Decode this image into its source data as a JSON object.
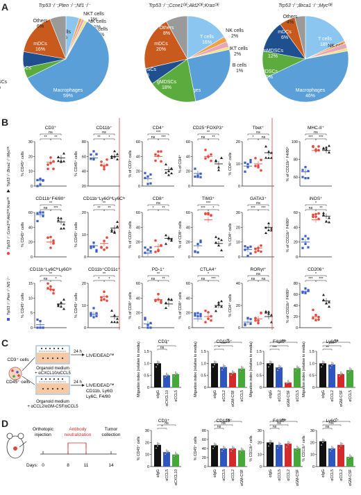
{
  "panels": {
    "A": "A",
    "B": "B",
    "C": "C",
    "D": "D"
  },
  "genotypes": [
    "Trp53⁻/⁻;Pten⁻/⁻;Nf1⁻/⁻",
    "Trp53⁻/⁻;Ccne1ᴼᴱ;Akt2ᴼᴱ;Krasᴼᴱ",
    "Trp53⁻/⁻;Brca1⁻/⁻;Mycᴼᴱ"
  ],
  "colors": {
    "macrophages": "#5a9fd8",
    "gmdscs": "#5cab3e",
    "mmdscs": "#1f4f8f",
    "mdcs": "#c85a1e",
    "others": "#9a9a9a",
    "tcells": "#8ac6ef",
    "nkcells": "#f2a14b",
    "nktcells": "#e8a7b8",
    "bcells": "#f5e37a",
    "grp1": "#3b5fc4",
    "grp2": "#e64a3c",
    "grp3": "#222222",
    "c_igg": "#111111",
    "c_blue": "#2f55c0",
    "c_red": "#d32b2b",
    "c_green": "#47a83a"
  },
  "chart_data": [
    {
      "type": "pie",
      "title": "Trp53⁻/⁻;Pten⁻/⁻;Nf1⁻/⁻",
      "slices": [
        {
          "label": "Macrophages",
          "value": 59,
          "pct": "59%"
        },
        {
          "label": "gMDSCs",
          "value": 4,
          "pct": "4%"
        },
        {
          "label": "mMDSCs",
          "value": 6,
          "pct": "6%"
        },
        {
          "label": "mDCs",
          "value": 16,
          "pct": "16%"
        },
        {
          "label": "Others",
          "value": 6,
          "pct": "6%"
        },
        {
          "label": "T cells",
          "value": 5,
          "pct": "5%"
        },
        {
          "label": "NKT cells",
          "value": 1,
          "pct": "1%"
        },
        {
          "label": "NK cells",
          "value": 1,
          "pct": "1%"
        },
        {
          "label": "B cells",
          "value": 1,
          "pct": "1%"
        }
      ]
    },
    {
      "type": "pie",
      "title": "Trp53⁻/⁻;Ccne1ᴼᴱ;Akt2ᴼᴱ;Krasᴼᴱ",
      "slices": [
        {
          "label": "Macrophages",
          "value": 25,
          "pct": "25%"
        },
        {
          "label": "gMDSCs",
          "value": 18,
          "pct": "18%"
        },
        {
          "label": "mMDSCs",
          "value": 6,
          "pct": "6%"
        },
        {
          "label": "mDCs",
          "value": 20,
          "pct": "20%"
        },
        {
          "label": "Others",
          "value": 8,
          "pct": "8%"
        },
        {
          "label": "T cells",
          "value": 16,
          "pct": "16%"
        },
        {
          "label": "NK cells",
          "value": 2,
          "pct": "2%"
        },
        {
          "label": "NKT cells",
          "value": 2,
          "pct": "2%"
        },
        {
          "label": "B cells",
          "value": 1,
          "pct": "1%"
        }
      ]
    },
    {
      "type": "pie",
      "title": "Trp53⁻/⁻;Brca1⁻/⁻;Mycᴼᴱ",
      "slices": [
        {
          "label": "Macrophages",
          "value": 46,
          "pct": "46%"
        },
        {
          "label": "gMDSCs",
          "value": 10,
          "pct": "10%"
        },
        {
          "label": "mMDSCs",
          "value": 12,
          "pct": "12%"
        },
        {
          "label": "mDCs",
          "value": 6,
          "pct": "6%"
        },
        {
          "label": "Others",
          "value": 4,
          "pct": "4%"
        },
        {
          "label": "T cells",
          "value": 18,
          "pct": "18%"
        },
        {
          "label": "NK cells",
          "value": 1,
          "pct": "1%"
        },
        {
          "label": "NKT cells",
          "value": 2,
          "pct": "2%"
        },
        {
          "label": "B cells",
          "value": 1,
          "pct": "1%"
        }
      ]
    },
    {
      "type": "scatter",
      "group": "B",
      "title": "CD3⁺",
      "ylabel": "% CD45⁺ cells",
      "yticks": [
        "0",
        "10",
        "20",
        "30"
      ],
      "ylim": [
        0,
        30
      ],
      "means": [
        4,
        16,
        19
      ],
      "sig": [
        "**",
        "**",
        "ns"
      ]
    },
    {
      "type": "scatter",
      "group": "B",
      "title": "CD11b⁺",
      "ylabel": "% CD45⁺ cells",
      "yticks": [
        "20",
        "40",
        "60",
        "80"
      ],
      "ylim": [
        20,
        80
      ],
      "means": [
        58,
        48,
        60
      ],
      "sig": [
        "**",
        "*",
        "ns"
      ]
    },
    {
      "type": "scatter",
      "group": "B",
      "title": "CD4⁺",
      "ylabel": "% of CD3⁺ cells",
      "yticks": [
        "0",
        "20",
        "40",
        "60"
      ],
      "ylim": [
        0,
        60
      ],
      "means": [
        10,
        40,
        22
      ],
      "sig": [
        "ns",
        "***",
        "***"
      ]
    },
    {
      "type": "scatter",
      "group": "B",
      "title": "CD25⁺FOXP3⁺",
      "ylabel": "% of CD4⁺",
      "yticks": [
        "0",
        "20",
        "40",
        "60"
      ],
      "ylim": [
        0,
        60
      ],
      "means": [
        17,
        40,
        30
      ],
      "sig": [
        "ns",
        "**",
        "**"
      ]
    },
    {
      "type": "scatter",
      "group": "B",
      "title": "Tbet⁺",
      "ylabel": "% CD4⁺ cells",
      "yticks": [
        "0",
        "10",
        "20"
      ],
      "ylim": [
        0,
        20
      ],
      "means": [
        9,
        10,
        15
      ],
      "sig": [
        "*",
        "ns",
        "ns"
      ]
    },
    {
      "type": "scatter",
      "group": "B",
      "title": "MHC-II⁺",
      "ylabel": "% of CD11b⁺ F4/80⁺",
      "yticks": [
        "60",
        "80",
        "100"
      ],
      "ylim": [
        50,
        100
      ],
      "means": [
        66,
        90,
        90
      ],
      "sig": [
        "***",
        "***",
        "ns"
      ]
    },
    {
      "type": "scatter",
      "group": "B",
      "title": "CD11b⁺F4/80⁺",
      "ylabel": "% CD45⁺ cells",
      "yticks": [
        "0",
        "20",
        "40",
        "60"
      ],
      "ylim": [
        0,
        60
      ],
      "means": [
        57,
        20,
        47
      ],
      "sig": [
        "ns",
        "***",
        "**"
      ]
    },
    {
      "type": "scatter",
      "group": "B",
      "title": "CD11b⁺Ly6GʰⁱLy6Cˡᵒ",
      "ylabel": "% CD45⁺ cells",
      "yticks": [
        "0",
        "10",
        "20"
      ],
      "ylim": [
        0,
        20
      ],
      "means": [
        5,
        6,
        13
      ],
      "sig": [
        "**",
        "**",
        "**"
      ]
    },
    {
      "type": "scatter",
      "group": "B",
      "title": "CD8⁺",
      "ylabel": "% of CD3⁺ cells",
      "yticks": [
        "0",
        "20",
        "40",
        "60"
      ],
      "ylim": [
        0,
        60
      ],
      "means": [
        5,
        14,
        25
      ],
      "sig": [
        "*",
        "**",
        "ns"
      ]
    },
    {
      "type": "scatter",
      "group": "B",
      "title": "TIM3⁺",
      "ylabel": "% of CD8⁺ cells",
      "yticks": [
        "0",
        "20",
        "40",
        "60"
      ],
      "ylim": [
        0,
        60
      ],
      "means": [
        15,
        50,
        18
      ],
      "sig": [
        "***",
        "*",
        "***"
      ]
    },
    {
      "type": "scatter",
      "group": "B",
      "title": "GATA3⁺",
      "ylabel": "% CD4⁺ cells",
      "yticks": [
        "0",
        "10",
        "20",
        "30"
      ],
      "ylim": [
        0,
        30
      ],
      "means": [
        5,
        6,
        20
      ],
      "sig": [
        "***",
        "***",
        "ns"
      ]
    },
    {
      "type": "scatter",
      "group": "B",
      "title": "iNOS⁺",
      "ylabel": "% of CD11b⁺ F4/80⁺",
      "yticks": [
        "0",
        "20",
        "40",
        "60"
      ],
      "ylim": [
        0,
        60
      ],
      "means": [
        20,
        50,
        55
      ],
      "sig": [
        "ns",
        "**",
        "*"
      ]
    },
    {
      "type": "scatter",
      "group": "B",
      "title": "CD11b⁺Ly6CʰⁱLy6Gˡᵒ",
      "ylabel": "% CD45⁺ cells",
      "yticks": [
        "0",
        "5",
        "10",
        "15"
      ],
      "ylim": [
        0,
        15
      ],
      "means": [
        1,
        13,
        8
      ],
      "sig": [
        "ns",
        "*",
        "**"
      ]
    },
    {
      "type": "scatter",
      "group": "B",
      "title": "CD11b⁺CD11c⁺",
      "ylabel": "% CD45⁺ cells",
      "yticks": [
        "0",
        "10",
        "20"
      ],
      "ylim": [
        0,
        20
      ],
      "means": [
        6,
        14,
        5
      ],
      "sig": [
        "*",
        "*",
        "**"
      ]
    },
    {
      "type": "scatter",
      "group": "B",
      "title": "PD-1⁺",
      "ylabel": "% of CD8⁺ cells",
      "yticks": [
        "0",
        "20",
        "40",
        "60"
      ],
      "ylim": [
        0,
        60
      ],
      "means": [
        5,
        38,
        32
      ],
      "sig": [
        "ns",
        "**",
        "**"
      ]
    },
    {
      "type": "scatter",
      "group": "B",
      "title": "CTLA4⁺",
      "ylabel": "% of CD8⁺ cells",
      "yticks": [
        "0",
        "20",
        "40",
        "60"
      ],
      "ylim": [
        0,
        60
      ],
      "means": [
        12,
        15,
        30
      ],
      "sig": [
        "ns",
        "***",
        "*"
      ]
    },
    {
      "type": "scatter",
      "group": "B",
      "title": "RORγt⁺",
      "ylabel": "% CD4⁺ cells",
      "yticks": [
        "0",
        "20",
        "40"
      ],
      "ylim": [
        0,
        40
      ],
      "means": [
        5,
        8,
        10
      ],
      "sig": [
        "ns",
        "ns",
        "ns"
      ]
    },
    {
      "type": "scatter",
      "group": "B",
      "title": "CD206⁺",
      "ylabel": "% of CD11b⁺ F4/80⁺",
      "yticks": [
        "0",
        "20",
        "40",
        "60",
        "80"
      ],
      "ylim": [
        0,
        80
      ],
      "means": [
        65,
        20,
        48
      ],
      "sig": [
        "***",
        "***",
        "*"
      ]
    },
    {
      "type": "bar",
      "group": "C",
      "title": "CD3⁺",
      "ylabel": "Migration index (relative to media)",
      "yticks": [
        "0",
        "0.5",
        "1.0",
        "1.5"
      ],
      "ylim": [
        0,
        1.5
      ],
      "categories": [
        "αIgG",
        "αCXCL10",
        "αCCL5"
      ],
      "values": [
        1.0,
        0.5,
        0.55
      ],
      "sig": [
        "ns",
        "*"
      ]
    },
    {
      "type": "bar",
      "group": "C",
      "title": "CD11b⁺",
      "ylabel": "Migration index (relative to media)",
      "yticks": [
        "0",
        "0.5",
        "1.0",
        "1.5"
      ],
      "ylim": [
        0,
        1.5
      ],
      "categories": [
        "αIgG",
        "αCCL2",
        "αGM-CSF",
        "αCCL5"
      ],
      "values": [
        1.0,
        0.85,
        0.6,
        0.78
      ],
      "sig": [
        "*",
        "***",
        "**"
      ]
    },
    {
      "type": "bar",
      "group": "C",
      "title": "F4/80⁺",
      "ylabel": "Migration index (relative to media)",
      "yticks": [
        "0",
        "0.5",
        "1.0",
        "1.5"
      ],
      "ylim": [
        0,
        1.5
      ],
      "categories": [
        "αIgG",
        "αCCL2",
        "αGM-CSF",
        "αCCL5"
      ],
      "values": [
        1.0,
        0.83,
        0.2,
        0.8
      ],
      "sig": [
        "***",
        "*",
        "ns"
      ]
    },
    {
      "type": "bar",
      "group": "C",
      "title": "Ly6G⁺",
      "ylabel": "Migration index (relative to media)",
      "yticks": [
        "0",
        "0.5",
        "1.0",
        "1.5"
      ],
      "ylim": [
        0,
        1.5
      ],
      "categories": [
        "αIgG",
        "αCCL2",
        "αGM-CSF",
        "αCCL5"
      ],
      "values": [
        1.0,
        0.95,
        0.55,
        0.72
      ],
      "sig": [
        "**",
        "***",
        "ns"
      ]
    },
    {
      "type": "bar",
      "group": "D",
      "title": "CD3⁺",
      "ylabel": "% CD45⁺ cells",
      "yticks": [
        "0",
        "10",
        "20",
        "30"
      ],
      "ylim": [
        0,
        30
      ],
      "categories": [
        "αIgG",
        "αCCL5",
        "αCXCL10"
      ],
      "values": [
        18,
        12,
        10
      ],
      "sig": [
        "*",
        "ns"
      ]
    },
    {
      "type": "bar",
      "group": "D",
      "title": "CD11b⁺",
      "ylabel": "% CD45⁺ cells",
      "yticks": [
        "0",
        "20",
        "40",
        "60",
        "80"
      ],
      "ylim": [
        0,
        80
      ],
      "categories": [
        "αIgG",
        "αCCL5",
        "αCCL2",
        "αGM-CSF"
      ],
      "values": [
        47,
        40,
        40,
        36
      ],
      "sig": [
        "ns",
        "ns",
        "ns"
      ]
    },
    {
      "type": "bar",
      "group": "D",
      "title": "F4/80⁺",
      "ylabel": "% CD11b⁺ cells",
      "yticks": [
        "0",
        "10",
        "20",
        "30"
      ],
      "ylim": [
        0,
        30
      ],
      "categories": [
        "αIgG",
        "αCCL5",
        "αCCL2",
        "αGM-CSF"
      ],
      "values": [
        20,
        18,
        19,
        15
      ],
      "sig": [
        "ns",
        "ns",
        "ns"
      ]
    },
    {
      "type": "bar",
      "group": "D",
      "title": "Ly6G⁺",
      "ylabel": "% CD11b⁺ cells",
      "yticks": [
        "0",
        "10",
        "20",
        "30"
      ],
      "ylim": [
        0,
        30
      ],
      "categories": [
        "αIgG",
        "αCCL5",
        "αCCL2",
        "αGM-CSF"
      ],
      "values": [
        21,
        15,
        18,
        8
      ],
      "sig": [
        "ns",
        "ns",
        "*"
      ]
    }
  ],
  "schematic_c": {
    "cd3": "CD3⁺ cells",
    "cd45": "CD45⁺ cells",
    "time1": "24 h",
    "time2": "24 h",
    "readout1": "LIVE/DEAD™",
    "readout2": "LIVE/DEAD™",
    "readout2b": "CD11b, Ly6G",
    "readout2c": "Ly6C, F4/80",
    "medium1": "Organoid medium",
    "medium1b": "+ αCXCL10/αCCL5",
    "medium2": "Organoid medium",
    "medium2b": "+ αCCL2/αGM-CSF/αCCL5"
  },
  "schematic_d": {
    "step1": "Orthotopic",
    "step1b": "injection",
    "step2": "Antibody",
    "step2b": "neutralization",
    "step3": "Tumor",
    "step3b": "collection",
    "days_label": "Days:",
    "days": [
      "0",
      "8",
      "11",
      "14"
    ]
  }
}
